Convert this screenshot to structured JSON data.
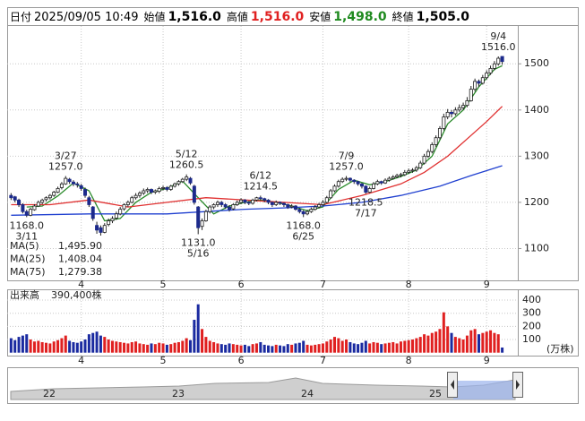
{
  "header": [
    {
      "label": "日付",
      "value": "2025/09/05 10:49",
      "color": "#000000"
    },
    {
      "label": "始値",
      "value": "1,516.0",
      "color": "#000000"
    },
    {
      "label": "高値",
      "value": "1,516.0",
      "color": "#e02020"
    },
    {
      "label": "安値",
      "value": "1,498.0",
      "color": "#1f8a1f"
    },
    {
      "label": "終値",
      "value": "1,505.0",
      "color": "#000000"
    }
  ],
  "chart_data": {
    "type": "candlestick",
    "candles": [
      [
        1215,
        1220,
        1205,
        1210
      ],
      [
        1212,
        1214,
        1200,
        1205
      ],
      [
        1205,
        1208,
        1190,
        1195
      ],
      [
        1195,
        1198,
        1176,
        1180
      ],
      [
        1180,
        1184,
        1168,
        1172
      ],
      [
        1172,
        1188,
        1170,
        1185
      ],
      [
        1184,
        1196,
        1182,
        1192
      ],
      [
        1192,
        1204,
        1190,
        1200
      ],
      [
        1200,
        1208,
        1196,
        1205
      ],
      [
        1206,
        1213,
        1202,
        1210
      ],
      [
        1210,
        1218,
        1206,
        1215
      ],
      [
        1215,
        1225,
        1212,
        1222
      ],
      [
        1222,
        1234,
        1220,
        1230
      ],
      [
        1232,
        1244,
        1228,
        1240
      ],
      [
        1240,
        1257,
        1238,
        1252
      ],
      [
        1250,
        1253,
        1240,
        1245
      ],
      [
        1244,
        1248,
        1235,
        1240
      ],
      [
        1240,
        1244,
        1232,
        1238
      ],
      [
        1236,
        1240,
        1225,
        1230
      ],
      [
        1228,
        1232,
        1210,
        1215
      ],
      [
        1210,
        1214,
        1190,
        1195
      ],
      [
        1190,
        1192,
        1160,
        1165
      ],
      [
        1150,
        1158,
        1132,
        1140
      ],
      [
        1145,
        1150,
        1128,
        1135
      ],
      [
        1135,
        1155,
        1133,
        1150
      ],
      [
        1152,
        1165,
        1148,
        1160
      ],
      [
        1160,
        1170,
        1155,
        1165
      ],
      [
        1166,
        1180,
        1162,
        1175
      ],
      [
        1175,
        1190,
        1172,
        1185
      ],
      [
        1186,
        1198,
        1182,
        1195
      ],
      [
        1195,
        1204,
        1190,
        1200
      ],
      [
        1200,
        1214,
        1198,
        1210
      ],
      [
        1210,
        1220,
        1206,
        1215
      ],
      [
        1215,
        1224,
        1210,
        1220
      ],
      [
        1220,
        1230,
        1216,
        1225
      ],
      [
        1225,
        1232,
        1220,
        1228
      ],
      [
        1228,
        1230,
        1218,
        1222
      ],
      [
        1222,
        1228,
        1218,
        1225
      ],
      [
        1224,
        1234,
        1220,
        1230
      ],
      [
        1230,
        1236,
        1226,
        1232
      ],
      [
        1232,
        1235,
        1224,
        1228
      ],
      [
        1228,
        1238,
        1225,
        1235
      ],
      [
        1235,
        1243,
        1232,
        1240
      ],
      [
        1240,
        1248,
        1236,
        1245
      ],
      [
        1245,
        1253,
        1242,
        1250
      ],
      [
        1250,
        1260.5,
        1246,
        1255
      ],
      [
        1252,
        1255,
        1238,
        1242
      ],
      [
        1235,
        1238,
        1195,
        1200
      ],
      [
        1190,
        1192,
        1131,
        1145
      ],
      [
        1148,
        1165,
        1140,
        1160
      ],
      [
        1160,
        1184,
        1158,
        1180
      ],
      [
        1180,
        1194,
        1176,
        1190
      ],
      [
        1190,
        1198,
        1185,
        1195
      ],
      [
        1195,
        1204,
        1190,
        1200
      ],
      [
        1200,
        1203,
        1190,
        1195
      ],
      [
        1195,
        1198,
        1186,
        1190
      ],
      [
        1190,
        1194,
        1180,
        1185
      ],
      [
        1186,
        1198,
        1183,
        1195
      ],
      [
        1195,
        1204,
        1192,
        1200
      ],
      [
        1200,
        1209,
        1196,
        1205
      ],
      [
        1205,
        1207,
        1196,
        1200
      ],
      [
        1200,
        1203,
        1194,
        1198
      ],
      [
        1198,
        1208,
        1195,
        1205
      ],
      [
        1205,
        1212,
        1202,
        1210
      ],
      [
        1210,
        1214.5,
        1204,
        1208
      ],
      [
        1208,
        1210,
        1200,
        1205
      ],
      [
        1205,
        1207,
        1196,
        1200
      ],
      [
        1200,
        1202,
        1190,
        1195
      ],
      [
        1195,
        1204,
        1192,
        1200
      ],
      [
        1200,
        1202,
        1194,
        1198
      ],
      [
        1198,
        1200,
        1190,
        1195
      ],
      [
        1195,
        1197,
        1186,
        1190
      ],
      [
        1190,
        1196,
        1187,
        1192
      ],
      [
        1192,
        1194,
        1182,
        1185
      ],
      [
        1185,
        1188,
        1176,
        1180
      ],
      [
        1180,
        1183,
        1168,
        1175
      ],
      [
        1175,
        1184,
        1172,
        1180
      ],
      [
        1180,
        1189,
        1177,
        1185
      ],
      [
        1185,
        1194,
        1182,
        1190
      ],
      [
        1190,
        1199,
        1187,
        1195
      ],
      [
        1195,
        1205,
        1192,
        1200
      ],
      [
        1200,
        1214,
        1198,
        1210
      ],
      [
        1210,
        1229,
        1208,
        1225
      ],
      [
        1225,
        1239,
        1222,
        1235
      ],
      [
        1235,
        1249,
        1232,
        1245
      ],
      [
        1245,
        1254,
        1242,
        1250
      ],
      [
        1250,
        1257,
        1246,
        1252
      ],
      [
        1252,
        1254,
        1244,
        1248
      ],
      [
        1248,
        1250,
        1240,
        1245
      ],
      [
        1245,
        1247,
        1236,
        1240
      ],
      [
        1240,
        1242,
        1230,
        1235
      ],
      [
        1235,
        1237,
        1218.5,
        1222
      ],
      [
        1222,
        1234,
        1220,
        1230
      ],
      [
        1230,
        1244,
        1228,
        1240
      ],
      [
        1240,
        1249,
        1237,
        1245
      ],
      [
        1245,
        1247,
        1238,
        1242
      ],
      [
        1242,
        1252,
        1240,
        1248
      ],
      [
        1248,
        1256,
        1245,
        1252
      ],
      [
        1252,
        1259,
        1249,
        1255
      ],
      [
        1255,
        1262,
        1252,
        1258
      ],
      [
        1258,
        1264,
        1254,
        1260
      ],
      [
        1260,
        1270,
        1257,
        1265
      ],
      [
        1265,
        1273,
        1262,
        1268
      ],
      [
        1268,
        1274,
        1264,
        1270
      ],
      [
        1270,
        1279,
        1266,
        1275
      ],
      [
        1275,
        1290,
        1272,
        1285
      ],
      [
        1285,
        1305,
        1282,
        1300
      ],
      [
        1300,
        1315,
        1296,
        1310
      ],
      [
        1310,
        1330,
        1306,
        1325
      ],
      [
        1325,
        1345,
        1320,
        1340
      ],
      [
        1340,
        1365,
        1336,
        1360
      ],
      [
        1360,
        1392,
        1356,
        1385
      ],
      [
        1385,
        1402,
        1380,
        1395
      ],
      [
        1395,
        1400,
        1384,
        1392
      ],
      [
        1392,
        1406,
        1388,
        1400
      ],
      [
        1400,
        1412,
        1396,
        1405
      ],
      [
        1405,
        1416,
        1400,
        1410
      ],
      [
        1410,
        1428,
        1406,
        1420
      ],
      [
        1420,
        1452,
        1418,
        1445
      ],
      [
        1445,
        1468,
        1440,
        1462
      ],
      [
        1462,
        1466,
        1450,
        1458
      ],
      [
        1458,
        1476,
        1455,
        1470
      ],
      [
        1470,
        1486,
        1466,
        1480
      ],
      [
        1480,
        1496,
        1476,
        1490
      ],
      [
        1490,
        1506,
        1486,
        1500
      ],
      [
        1500,
        1516,
        1496,
        1512
      ],
      [
        1516,
        1516,
        1498,
        1505
      ]
    ],
    "xlim": [
      -1,
      130
    ],
    "ylim": [
      1033,
      1580
    ],
    "yticks": [
      1100,
      1200,
      1300,
      1400,
      1500
    ],
    "xticks": [
      {
        "value": 18,
        "label": "4"
      },
      {
        "value": 39,
        "label": "5"
      },
      {
        "value": 59,
        "label": "6"
      },
      {
        "value": 80,
        "label": "7"
      },
      {
        "value": 102,
        "label": "8"
      },
      {
        "value": 122,
        "label": "9"
      }
    ],
    "grid": true,
    "up_color": "#ffffff",
    "down_color": "#1c2a8c",
    "wick_color": "#222222",
    "ma": [
      {
        "name": "MA(5)",
        "color": "#2a8a2a",
        "value_label": "1,495.90",
        "x": [
          4,
          8,
          12,
          16,
          20,
          24,
          28,
          32,
          36,
          40,
          44,
          48,
          52,
          56,
          60,
          64,
          68,
          72,
          76,
          80,
          84,
          88,
          92,
          96,
          100,
          104,
          108,
          112,
          116,
          120,
          124,
          126
        ],
        "values": [
          1190,
          1192,
          1214,
          1242,
          1225,
          1160,
          1165,
          1200,
          1222,
          1230,
          1246,
          1210,
          1175,
          1192,
          1200,
          1205,
          1200,
          1192,
          1182,
          1190,
          1228,
          1248,
          1238,
          1245,
          1256,
          1270,
          1300,
          1370,
          1400,
          1450,
          1488,
          1495.9
        ]
      },
      {
        "name": "MA(25)",
        "color": "#e03030",
        "value_label": "1,408.04",
        "x": [
          0,
          10,
          20,
          30,
          40,
          50,
          60,
          70,
          80,
          90,
          100,
          106,
          112,
          118,
          122,
          126
        ],
        "values": [
          1195,
          1195,
          1205,
          1190,
          1200,
          1210,
          1205,
          1200,
          1195,
          1215,
          1240,
          1265,
          1300,
          1345,
          1375,
          1408.04
        ]
      },
      {
        "name": "MA(75)",
        "color": "#2040d0",
        "value_label": "1,279.38",
        "x": [
          0,
          20,
          40,
          60,
          70,
          80,
          90,
          100,
          110,
          118,
          126
        ],
        "values": [
          1172,
          1175,
          1175,
          1185,
          1188,
          1192,
          1200,
          1215,
          1235,
          1258,
          1279.38
        ]
      }
    ],
    "annotations": [
      {
        "date": "3/11",
        "x": 4,
        "value": 1168,
        "label": "1168.0",
        "position": "below"
      },
      {
        "date": "3/27",
        "x": 14,
        "value": 1257,
        "label": "1257.0",
        "position": "above"
      },
      {
        "date": "5/12",
        "x": 45,
        "value": 1260.5,
        "label": "1260.5",
        "position": "above"
      },
      {
        "date": "5/16",
        "x": 48,
        "value": 1131,
        "label": "1131.0",
        "position": "below"
      },
      {
        "date": "6/12",
        "x": 64,
        "value": 1214.5,
        "label": "1214.5",
        "position": "above"
      },
      {
        "date": "6/25",
        "x": 75,
        "value": 1168,
        "label": "1168.0",
        "position": "below"
      },
      {
        "date": "7/9",
        "x": 86,
        "value": 1257,
        "label": "1257.0",
        "position": "above"
      },
      {
        "date": "7/17",
        "x": 91,
        "value": 1218.5,
        "label": "1218.5",
        "position": "below"
      },
      {
        "date": "9/4",
        "x": 125,
        "value": 1516,
        "label": "1516.0",
        "position": "above"
      }
    ],
    "volume_title": "出来高",
    "volume_label": "390,400株",
    "volume_unit": "(万株)",
    "volume": [
      110,
      95,
      120,
      130,
      140,
      100,
      85,
      90,
      80,
      75,
      70,
      85,
      95,
      110,
      130,
      90,
      80,
      75,
      85,
      100,
      140,
      150,
      160,
      130,
      120,
      100,
      90,
      85,
      80,
      75,
      70,
      80,
      85,
      70,
      65,
      60,
      70,
      65,
      75,
      70,
      60,
      65,
      75,
      80,
      90,
      110,
      95,
      250,
      368,
      180,
      120,
      90,
      80,
      70,
      65,
      60,
      70,
      65,
      60,
      55,
      60,
      50,
      65,
      70,
      80,
      60,
      55,
      50,
      60,
      55,
      50,
      65,
      60,
      70,
      75,
      90,
      60,
      55,
      60,
      65,
      70,
      85,
      100,
      120,
      110,
      90,
      100,
      80,
      70,
      65,
      75,
      90,
      70,
      80,
      75,
      65,
      70,
      75,
      80,
      70,
      85,
      90,
      95,
      100,
      110,
      120,
      140,
      130,
      150,
      160,
      180,
      307,
      200,
      150,
      120,
      110,
      100,
      130,
      170,
      180,
      140,
      150,
      160,
      170,
      150,
      140,
      39
    ],
    "volume_ylim": [
      0,
      482
    ],
    "volume_yticks": [
      100,
      200,
      300,
      400
    ],
    "up_volume_color": "#e02020",
    "down_volume_color": "#1a2aa0"
  },
  "navigator": {
    "labels": [
      "22",
      "23",
      "24",
      "25"
    ]
  }
}
